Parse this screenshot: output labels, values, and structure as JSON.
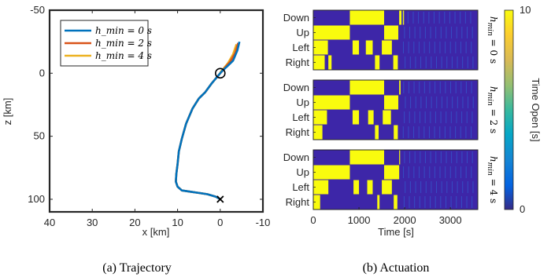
{
  "chart_data": [
    {
      "type": "line",
      "caption": "(a) Trajectory",
      "xlabel": "x [km]",
      "ylabel": "z [km]",
      "xlim": [
        40,
        -10
      ],
      "ylim": [
        -50,
        110
      ],
      "x_ticks": [
        "40",
        "30",
        "20",
        "10",
        "0",
        "-10"
      ],
      "y_ticks": [
        "-50",
        "0",
        "50",
        "100"
      ],
      "x_tick_values": [
        40,
        30,
        20,
        10,
        0,
        -10
      ],
      "y_tick_values": [
        -50,
        0,
        50,
        100
      ],
      "legend_position": "top-left",
      "series": [
        {
          "name": "h_min = 0 s",
          "color": "#0072BD",
          "x": [
            -4.5,
            -4.0,
            -3.0,
            -1.5,
            -0.5,
            0.0,
            0.5,
            2.0,
            3.5,
            5.0,
            6.5,
            8.0,
            9.0,
            9.7,
            10.0,
            10.3,
            10.4,
            10.0,
            9.0,
            7.0,
            5.0,
            3.0,
            1.0,
            0.0
          ],
          "y": [
            -25,
            -18,
            -10,
            -5,
            -2,
            0,
            2,
            8,
            15,
            20,
            28,
            40,
            52,
            62,
            72,
            80,
            86,
            90,
            93,
            94,
            95,
            96,
            98,
            100
          ]
        },
        {
          "name": "h_min = 2 s",
          "color": "#D95319",
          "x": [
            -4.2,
            -3.5,
            -2.3,
            -1.0,
            -0.3,
            0.0,
            0.5,
            2.0,
            3.5,
            5.0,
            6.5,
            8.0,
            9.0,
            9.7,
            10.0,
            10.3,
            10.4,
            10.0,
            9.0,
            7.0,
            5.0,
            3.0,
            1.0,
            0.0
          ],
          "y": [
            -24,
            -16,
            -9,
            -4,
            -1,
            0,
            2,
            8,
            15,
            20,
            28,
            40,
            52,
            62,
            72,
            80,
            86,
            90,
            93,
            94,
            95,
            96,
            98,
            100
          ]
        },
        {
          "name": "h_min = 4 s",
          "color": "#EDB120",
          "x": [
            -3.8,
            -3.0,
            -1.8,
            -0.6,
            -0.1,
            0.0,
            0.5,
            2.0,
            3.5,
            5.0,
            6.5,
            8.0,
            9.0,
            9.7,
            10.0,
            10.3,
            10.4,
            10.0,
            9.0,
            7.0,
            5.0,
            3.0,
            1.0,
            0.0
          ],
          "y": [
            -23,
            -15,
            -8,
            -3,
            -1,
            0,
            2,
            8,
            15,
            20,
            28,
            40,
            52,
            62,
            72,
            80,
            86,
            90,
            93,
            94,
            95,
            96,
            98,
            100
          ]
        }
      ],
      "markers": [
        {
          "kind": "circle",
          "x": 0,
          "y": 0
        },
        {
          "kind": "cross",
          "x": 0,
          "y": 100
        }
      ]
    },
    {
      "type": "heatmap",
      "caption": "(b) Actuation",
      "xlabel": "Time [s]",
      "xlim": [
        0,
        3600
      ],
      "x_ticks": [
        "0",
        "1000",
        "2000",
        "3000"
      ],
      "x_tick_values": [
        0,
        1000,
        2000,
        3000
      ],
      "rows": [
        "Down",
        "Up",
        "Left",
        "Right"
      ],
      "colorbar": {
        "label": "Time Open [s]",
        "min": 0,
        "max": 10,
        "ticks": [
          "0",
          "10"
        ]
      },
      "panels": [
        {
          "label_pre": "h",
          "label_sub": "min",
          "label_post": " = 0 s",
          "rows": {
            "Down": [
              [
                800,
                1550
              ],
              [
                1880,
                1930
              ],
              [
                1960,
                1985
              ]
            ],
            "Up": [
              [
                0,
                800
              ],
              [
                1550,
                1860
              ]
            ],
            "Left": [
              [
                0,
                320
              ],
              [
                860,
                1000
              ],
              [
                1150,
                1300
              ],
              [
                1500,
                1720
              ]
            ],
            "Right": [
              [
                0,
                250
              ],
              [
                330,
                400
              ],
              [
                1350,
                1450
              ],
              [
                1750,
                1850
              ]
            ]
          }
        },
        {
          "label_pre": "h",
          "label_sub": "min",
          "label_post": " = 2 s",
          "rows": {
            "Down": [
              [
                800,
                1550
              ],
              [
                1880,
                1910
              ]
            ],
            "Up": [
              [
                0,
                800
              ],
              [
                1550,
                1860
              ]
            ],
            "Left": [
              [
                0,
                300
              ],
              [
                860,
                1000
              ],
              [
                1200,
                1320
              ],
              [
                1520,
                1700
              ]
            ],
            "Right": [
              [
                0,
                200
              ],
              [
                1350,
                1430
              ],
              [
                1760,
                1850
              ]
            ]
          }
        },
        {
          "label_pre": "h",
          "label_sub": "min",
          "label_post": " = 4 s",
          "rows": {
            "Down": [
              [
                800,
                1550
              ],
              [
                1880,
                1900
              ]
            ],
            "Up": [
              [
                0,
                800
              ],
              [
                1550,
                1880
              ]
            ],
            "Left": [
              [
                0,
                330
              ],
              [
                880,
                1000
              ],
              [
                1180,
                1300
              ],
              [
                1500,
                1720
              ]
            ],
            "Right": [
              [
                0,
                150
              ],
              [
                1400,
                1450
              ],
              [
                1760,
                1840
              ]
            ]
          }
        }
      ]
    }
  ]
}
